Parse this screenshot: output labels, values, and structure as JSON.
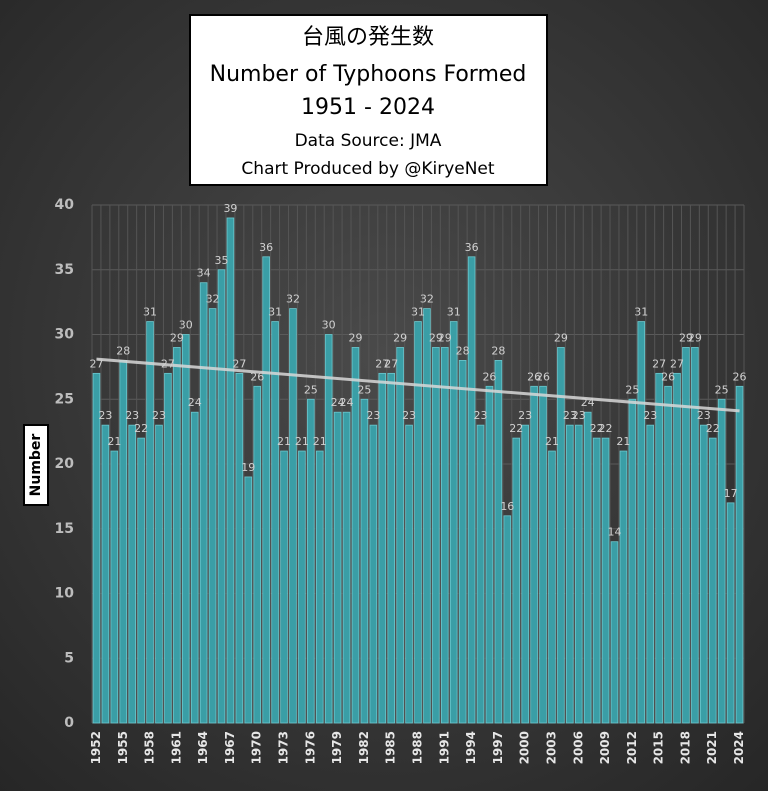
{
  "chart_data": {
    "type": "bar",
    "title_lines": [
      "台風の発生数",
      "Number of Typhoons Formed",
      "1951 - 2024"
    ],
    "subtitle_lines": [
      "Data Source: JMA",
      "Chart Produced by @KiryeNet"
    ],
    "y_label": "Number",
    "categories": [
      "1952",
      null,
      null,
      "1955",
      null,
      null,
      "1958",
      null,
      null,
      "1961",
      null,
      null,
      "1964",
      null,
      null,
      "1967",
      null,
      null,
      "1970",
      null,
      null,
      "1973",
      null,
      null,
      "1976",
      null,
      null,
      "1979",
      null,
      null,
      "1982",
      null,
      null,
      "1985",
      null,
      null,
      "1988",
      null,
      null,
      "1991",
      null,
      null,
      "1994",
      null,
      null,
      "1997",
      null,
      null,
      "2000",
      null,
      null,
      "2003",
      null,
      null,
      "2006",
      null,
      null,
      "2009",
      null,
      null,
      "2012",
      null,
      null,
      "2015",
      null,
      null,
      "2018",
      null,
      null,
      "2021",
      null,
      null,
      "2024"
    ],
    "values": [
      27,
      23,
      21,
      28,
      23,
      22,
      31,
      23,
      27,
      29,
      30,
      24,
      34,
      32,
      35,
      39,
      27,
      19,
      26,
      36,
      31,
      21,
      32,
      21,
      25,
      21,
      30,
      24,
      24,
      29,
      25,
      23,
      27,
      27,
      29,
      23,
      31,
      32,
      29,
      29,
      31,
      28,
      36,
      23,
      26,
      28,
      16,
      22,
      23,
      26,
      26,
      21,
      29,
      23,
      23,
      24,
      22,
      22,
      14,
      21,
      25,
      31,
      23,
      27,
      26,
      27,
      29,
      29,
      23,
      22,
      25,
      17,
      26
    ],
    "color": "#3a9ea6",
    "trendline": {
      "start": 28.1,
      "end": 24.1,
      "color": "#d8d8d8"
    },
    "ylim": [
      0,
      40
    ],
    "yticks": [
      0,
      5,
      10,
      15,
      20,
      25,
      30,
      35,
      40
    ],
    "grid": true
  }
}
